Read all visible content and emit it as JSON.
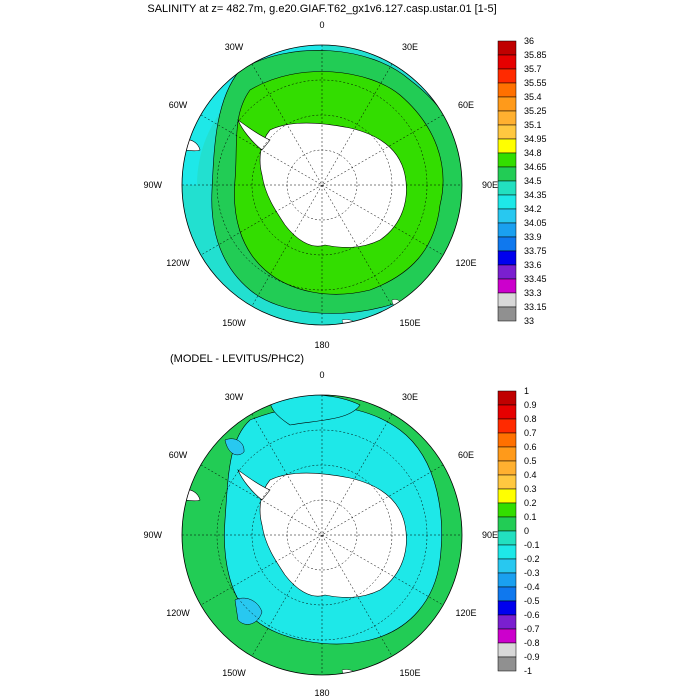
{
  "panels": [
    {
      "title": "SALINITY at z= 482.7m, g.e20.GIAF.T62_gx1v6.127.casp.ustar.01 [1-5]",
      "lon_labels": [
        "0",
        "30E",
        "60E",
        "90E",
        "120E",
        "150E",
        "180",
        "150W",
        "120W",
        "90W",
        "60W",
        "30W"
      ],
      "colorbar": {
        "labels": [
          "36",
          "35.85",
          "35.7",
          "35.55",
          "35.4",
          "35.25",
          "35.1",
          "34.95",
          "34.8",
          "34.65",
          "34.5",
          "34.35",
          "34.2",
          "34.05",
          "33.9",
          "33.75",
          "33.6",
          "33.45",
          "33.3",
          "33.15",
          "33"
        ],
        "colors": [
          "#c00000",
          "#e60000",
          "#ff2a00",
          "#ff7000",
          "#ff9a1a",
          "#ffb030",
          "#ffc840",
          "#ffff00",
          "#33dd00",
          "#22cc55",
          "#22e0c0",
          "#1ee8e8",
          "#28c8f0",
          "#1aa0f0",
          "#0f78ee",
          "#0000ee",
          "#7a1fd0",
          "#cc00cc",
          "#d8d8d8",
          "#909090"
        ]
      }
    },
    {
      "title": "(MODEL - LEVITUS/PHC2)",
      "lon_labels": [
        "0",
        "30E",
        "60E",
        "90E",
        "120E",
        "150E",
        "180",
        "150W",
        "120W",
        "90W",
        "60W",
        "30W"
      ],
      "colorbar": {
        "labels": [
          "1",
          "0.9",
          "0.8",
          "0.7",
          "0.6",
          "0.5",
          "0.4",
          "0.3",
          "0.2",
          "0.1",
          "0",
          "-0.1",
          "-0.2",
          "-0.3",
          "-0.4",
          "-0.5",
          "-0.6",
          "-0.7",
          "-0.8",
          "-0.9",
          "-1"
        ],
        "colors": [
          "#c00000",
          "#e60000",
          "#ff2a00",
          "#ff7000",
          "#ff9a1a",
          "#ffb030",
          "#ffc840",
          "#ffff00",
          "#33dd00",
          "#22cc55",
          "#22e0c0",
          "#1ee8e8",
          "#28c8f0",
          "#1aa0f0",
          "#0f78ee",
          "#0000ee",
          "#7a1fd0",
          "#cc00cc",
          "#d8d8d8",
          "#909090"
        ]
      }
    }
  ]
}
